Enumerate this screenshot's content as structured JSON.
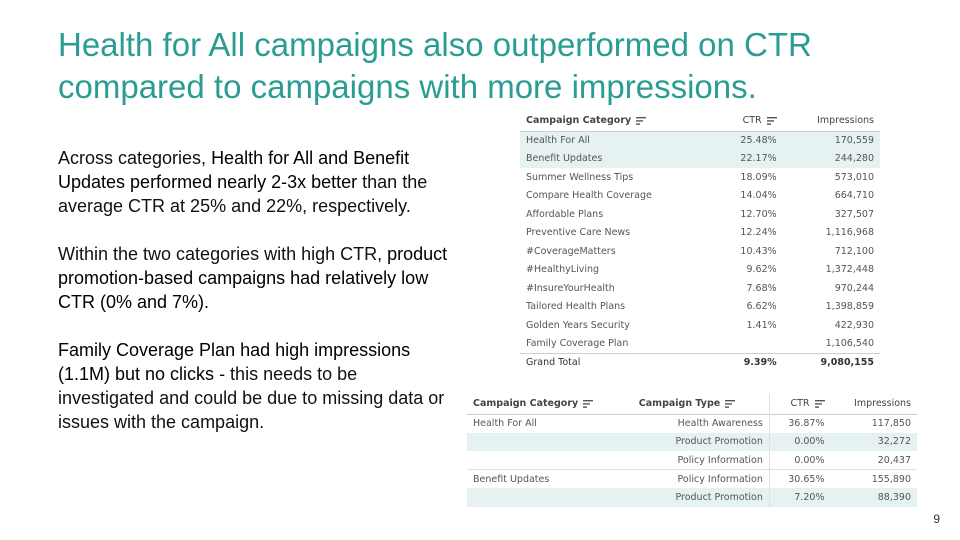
{
  "slide": {
    "title": "Health for All campaigns also outperformed on CTR compared to campaigns with more impressions.",
    "page_number": "9",
    "paragraphs": [
      {
        "pre": "Across categories, ",
        "bold": "Health for All and Benefit Updates performed nearly 2-3x better",
        "post": " than the average CTR at 25% and 22%, respectively."
      },
      {
        "pre": "Within the two categories with high CTR, ",
        "bold": "product promotion-based campaigns had relatively low CTR (0% and 7%).",
        "post": ""
      },
      {
        "pre": "",
        "bold": "Family Coverage Plan had high impressions (1.1M) but no clicks",
        "post": " - this needs to be investigated and could be due to missing data or issues with the campaign."
      }
    ]
  },
  "table1": {
    "headers": {
      "category": "Campaign Category",
      "ctr": "CTR",
      "impressions": "Impressions"
    },
    "rows": [
      {
        "category": "Health For All",
        "ctr": "25.48%",
        "impressions": "170,559",
        "highlight": true
      },
      {
        "category": "Benefit Updates",
        "ctr": "22.17%",
        "impressions": "244,280",
        "highlight": true
      },
      {
        "category": "Summer Wellness Tips",
        "ctr": "18.09%",
        "impressions": "573,010",
        "highlight": false
      },
      {
        "category": "Compare Health Coverage",
        "ctr": "14.04%",
        "impressions": "664,710",
        "highlight": false
      },
      {
        "category": "Affordable Plans",
        "ctr": "12.70%",
        "impressions": "327,507",
        "highlight": false
      },
      {
        "category": "Preventive Care News",
        "ctr": "12.24%",
        "impressions": "1,116,968",
        "highlight": false
      },
      {
        "category": "#CoverageMatters",
        "ctr": "10.43%",
        "impressions": "712,100",
        "highlight": false
      },
      {
        "category": "#HealthyLiving",
        "ctr": "9.62%",
        "impressions": "1,372,448",
        "highlight": false
      },
      {
        "category": "#InsureYourHealth",
        "ctr": "7.68%",
        "impressions": "970,244",
        "highlight": false
      },
      {
        "category": "Tailored Health Plans",
        "ctr": "6.62%",
        "impressions": "1,398,859",
        "highlight": false
      },
      {
        "category": "Golden Years Security",
        "ctr": "1.41%",
        "impressions": "422,930",
        "highlight": false
      },
      {
        "category": "Family Coverage Plan",
        "ctr": "",
        "impressions": "1,106,540",
        "highlight": false
      }
    ],
    "total": {
      "label": "Grand Total",
      "ctr": "9.39%",
      "impressions": "9,080,155"
    }
  },
  "table2": {
    "headers": {
      "category": "Campaign Category",
      "type": "Campaign Type",
      "ctr": "CTR",
      "impressions": "Impressions"
    },
    "rows": [
      {
        "category": "Health For All",
        "type": "Health Awareness",
        "ctr": "36.87%",
        "impressions": "117,850",
        "highlight": false,
        "group_start": false
      },
      {
        "category": "",
        "type": "Product Promotion",
        "ctr": "0.00%",
        "impressions": "32,272",
        "highlight": true,
        "group_start": false
      },
      {
        "category": "",
        "type": "Policy Information",
        "ctr": "0.00%",
        "impressions": "20,437",
        "highlight": false,
        "group_start": false
      },
      {
        "category": "Benefit Updates",
        "type": "Policy Information",
        "ctr": "30.65%",
        "impressions": "155,890",
        "highlight": false,
        "group_start": true
      },
      {
        "category": "",
        "type": "Product Promotion",
        "ctr": "7.20%",
        "impressions": "88,390",
        "highlight": true,
        "group_start": false
      }
    ]
  },
  "icons": {
    "sort": "sort-descending-icon"
  },
  "colors": {
    "title": "#2a9d93",
    "row_highlight": "#e6f1f1"
  }
}
